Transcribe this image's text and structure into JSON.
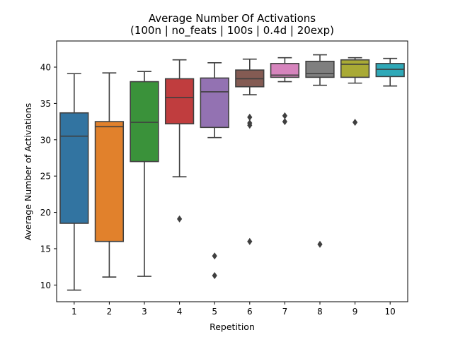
{
  "chart_data": {
    "type": "box",
    "title": "Average Number Of Activations",
    "subtitle": "(100n | no_feats | 100s | 0.4d | 20exp)",
    "xlabel": "Repetition",
    "ylabel": "Average Number of Activations",
    "categories": [
      "1",
      "2",
      "3",
      "4",
      "5",
      "6",
      "7",
      "8",
      "9",
      "10"
    ],
    "yticks": [
      10,
      15,
      20,
      25,
      30,
      35,
      40
    ],
    "ylim": [
      7.7,
      43.6
    ],
    "grid": false,
    "legend": "none",
    "boxes": [
      {
        "category": "1",
        "whisker_low": 9.3,
        "q1": 18.5,
        "median": 30.5,
        "q3": 33.7,
        "whisker_high": 39.1,
        "outliers": [],
        "color": "#3274a1"
      },
      {
        "category": "2",
        "whisker_low": 11.1,
        "q1": 16.0,
        "median": 31.8,
        "q3": 32.5,
        "whisker_high": 39.2,
        "outliers": [],
        "color": "#e1812c"
      },
      {
        "category": "3",
        "whisker_low": 11.2,
        "q1": 27.0,
        "median": 32.4,
        "q3": 38.0,
        "whisker_high": 39.4,
        "outliers": [],
        "color": "#3a923a"
      },
      {
        "category": "4",
        "whisker_low": 24.9,
        "q1": 32.2,
        "median": 35.8,
        "q3": 38.4,
        "whisker_high": 41.0,
        "outliers": [
          19.1
        ],
        "color": "#c03d3e"
      },
      {
        "category": "5",
        "whisker_low": 30.3,
        "q1": 31.7,
        "median": 36.6,
        "q3": 38.5,
        "whisker_high": 40.6,
        "outliers": [
          14.0,
          11.3
        ],
        "color": "#9372b2"
      },
      {
        "category": "6",
        "whisker_low": 36.2,
        "q1": 37.3,
        "median": 38.4,
        "q3": 39.6,
        "whisker_high": 41.1,
        "outliers": [
          33.1,
          32.3,
          32.0,
          16.0
        ],
        "color": "#845b53"
      },
      {
        "category": "7",
        "whisker_low": 38.0,
        "q1": 38.6,
        "median": 38.9,
        "q3": 40.5,
        "whisker_high": 41.3,
        "outliers": [
          33.3,
          32.5
        ],
        "color": "#d684bd"
      },
      {
        "category": "8",
        "whisker_low": 37.5,
        "q1": 38.6,
        "median": 39.1,
        "q3": 40.8,
        "whisker_high": 41.7,
        "outliers": [
          15.6
        ],
        "color": "#7f7f7f"
      },
      {
        "category": "9",
        "whisker_low": 37.8,
        "q1": 38.6,
        "median": 40.4,
        "q3": 41.0,
        "whisker_high": 41.3,
        "outliers": [
          32.4
        ],
        "color": "#a9aa35"
      },
      {
        "category": "10",
        "whisker_low": 37.4,
        "q1": 38.7,
        "median": 39.7,
        "q3": 40.5,
        "whisker_high": 41.2,
        "outliers": [],
        "color": "#2ea9b8"
      }
    ]
  }
}
